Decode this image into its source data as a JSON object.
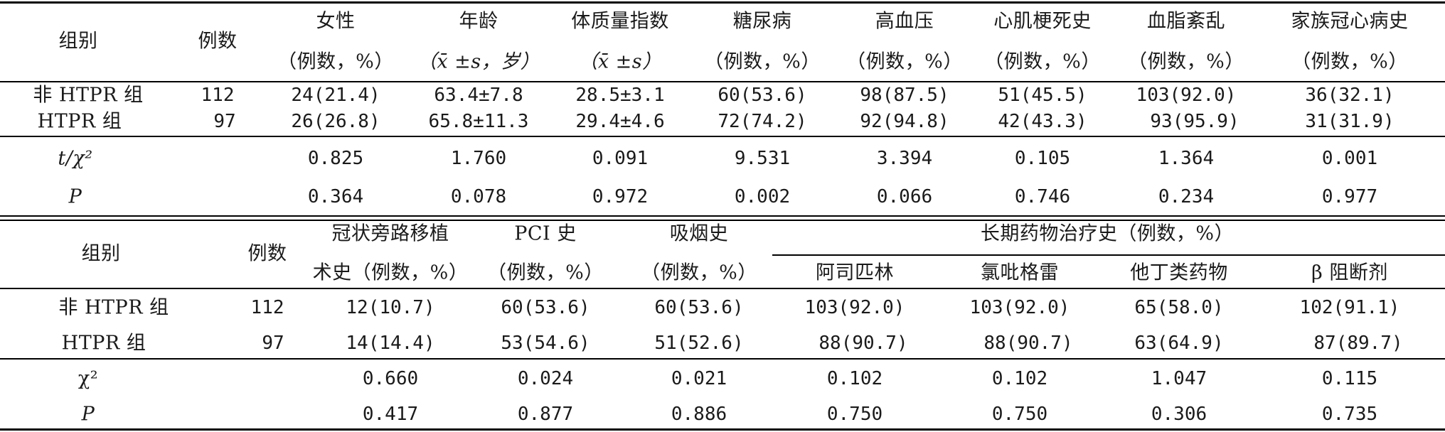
{
  "top": {
    "headers": {
      "group": "组别",
      "n": "例数",
      "cols": [
        {
          "l1": "女性",
          "l2": "（例数，%）"
        },
        {
          "l1": "年龄",
          "l2": "（x̄ ±s，岁）"
        },
        {
          "l1": "体质量指数",
          "l2": "（x̄ ±s）"
        },
        {
          "l1": "糖尿病",
          "l2": "（例数，%）"
        },
        {
          "l1": "高血压",
          "l2": "（例数，%）"
        },
        {
          "l1": "心肌梗死史",
          "l2": "（例数，%）"
        },
        {
          "l1": "血脂紊乱",
          "l2": "（例数，%）"
        },
        {
          "l1": "家族冠心病史",
          "l2": "（例数，%）"
        }
      ]
    },
    "rows": [
      {
        "group": "非 HTPR 组",
        "n": "112",
        "vals": [
          "24(21.4)",
          "63.4±7.8",
          "28.5±3.1",
          "60(53.6)",
          "98(87.5)",
          "51(45.5)",
          "103(92.0)",
          "36(32.1)"
        ]
      },
      {
        "group": "HTPR 组",
        "n": "97",
        "vals": [
          "26(26.8)",
          "65.8±11.3",
          "29.4±4.6",
          "72(74.2)",
          "92(94.8)",
          "42(43.3)",
          "93(95.9)",
          "31(31.9)"
        ]
      }
    ],
    "stats": [
      {
        "label": "t/χ²",
        "vals": [
          "0.825",
          "1.760",
          "0.091",
          "9.531",
          "3.394",
          "0.105",
          "1.364",
          "0.001"
        ]
      },
      {
        "label": "P",
        "vals": [
          "0.364",
          "0.078",
          "0.972",
          "0.002",
          "0.066",
          "0.746",
          "0.234",
          "0.977"
        ]
      }
    ]
  },
  "bottom": {
    "headers": {
      "group": "组别",
      "n": "例数",
      "cols": [
        {
          "l1": "冠状旁路移植",
          "l2": "术史（例数，%）"
        },
        {
          "l1": "PCI 史",
          "l2": "（例数，%）"
        },
        {
          "l1": "吸烟史",
          "l2": "（例数，%）"
        }
      ],
      "span": "长期药物治疗史（例数，%）",
      "sub": [
        "阿司匹林",
        "氯吡格雷",
        "他丁类药物",
        "β 阻断剂"
      ]
    },
    "rows": [
      {
        "group": "非 HTPR 组",
        "n": "112",
        "vals": [
          "12(10.7)",
          "60(53.6)",
          "60(53.6)",
          "103(92.0)",
          "103(92.0)",
          "65(58.0)",
          "102(91.1)"
        ]
      },
      {
        "group": "HTPR 组",
        "n": "97",
        "vals": [
          "14(14.4)",
          "53(54.6)",
          "51(52.6)",
          "88(90.7)",
          "88(90.7)",
          "63(64.9)",
          "87(89.7)"
        ]
      }
    ],
    "stats": [
      {
        "label": "χ²",
        "vals": [
          "0.660",
          "0.024",
          "0.021",
          "0.102",
          "0.102",
          "1.047",
          "0.115"
        ]
      },
      {
        "label": "P",
        "vals": [
          "0.417",
          "0.877",
          "0.886",
          "0.750",
          "0.750",
          "0.306",
          "0.735"
        ]
      }
    ]
  }
}
